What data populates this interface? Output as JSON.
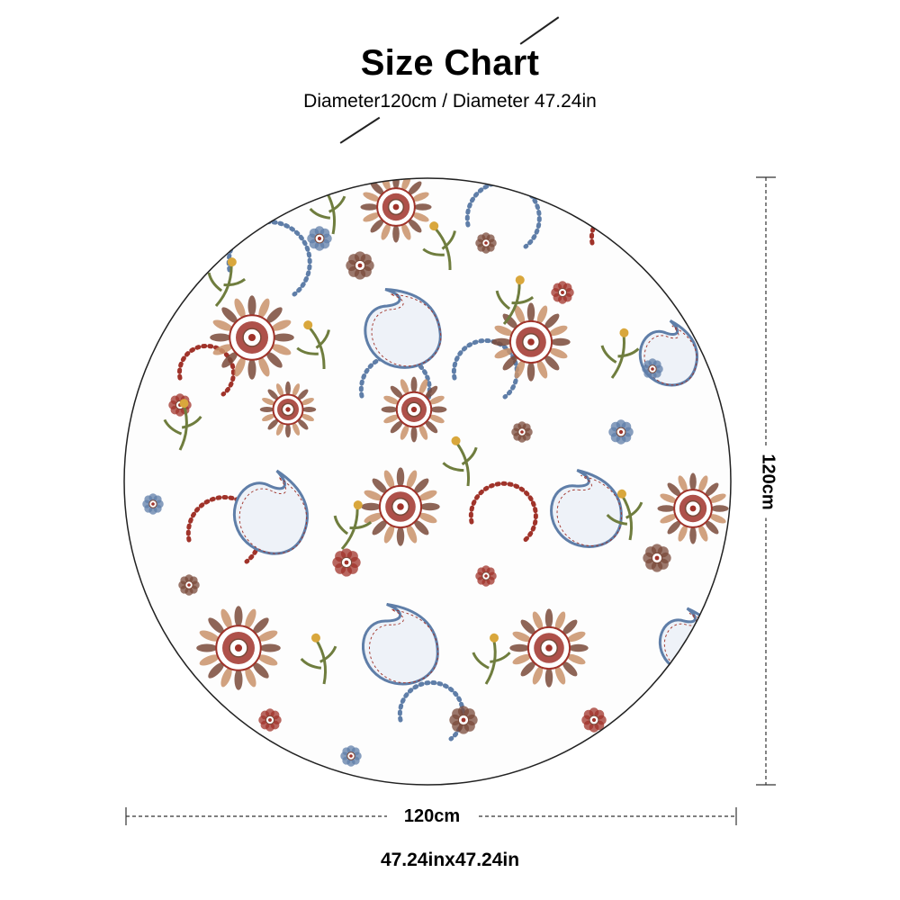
{
  "header": {
    "title": "Size Chart",
    "subtitle": "Diameter120cm / Diameter 47.24in"
  },
  "product": {
    "shape": "round",
    "pattern": "paisley-floral",
    "colors": {
      "red": "#a0332a",
      "brown": "#7a4a3a",
      "blue": "#5f7ea8",
      "olive": "#6f7d3e",
      "gold": "#d9a73c",
      "tan": "#c9926a",
      "outline": "#222222"
    }
  },
  "dimensions": {
    "width_label": "120cm",
    "height_label": "120cm",
    "size_text": "47.24inx47.24in"
  }
}
